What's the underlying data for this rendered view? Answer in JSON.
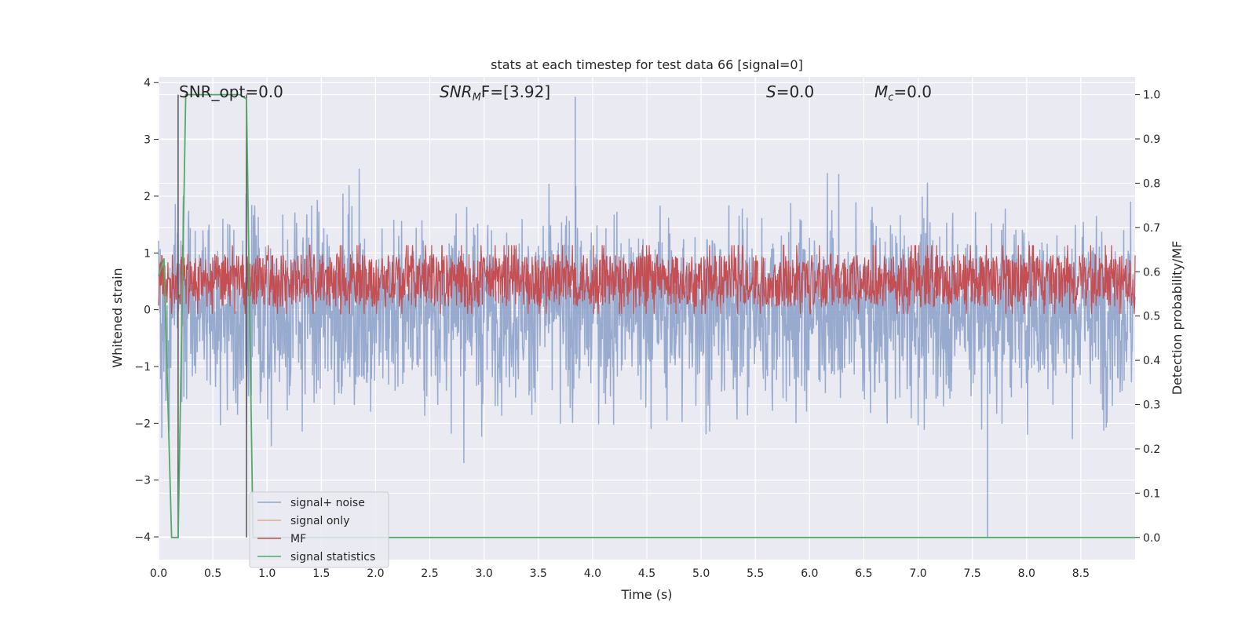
{
  "chart_data": {
    "type": "line",
    "title": "stats at each timestep for test data 66 [signal=0]",
    "xlabel": "Time (s)",
    "ylabel_left": "Whitened strain",
    "ylabel_right": "Detection probability/MF",
    "xlim": [
      0.0,
      9.0
    ],
    "ylim_left": [
      -4.4,
      4.1
    ],
    "ylim_right": [
      -0.05,
      1.04
    ],
    "x_ticks": [
      "0.0",
      "0.5",
      "1.0",
      "1.5",
      "2.0",
      "2.5",
      "3.0",
      "3.5",
      "4.0",
      "4.5",
      "5.0",
      "5.5",
      "6.0",
      "6.5",
      "7.0",
      "7.5",
      "8.0",
      "8.5"
    ],
    "y_left_ticks": [
      "4",
      "3",
      "2",
      "1",
      "0",
      "−1",
      "−2",
      "−3",
      "−4"
    ],
    "y_right_ticks": [
      "1.0",
      "0.9",
      "0.8",
      "0.7",
      "0.6",
      "0.5",
      "0.4",
      "0.3",
      "0.2",
      "0.1",
      "0.0"
    ],
    "grid": true,
    "legend_position": "lower-left",
    "annotations": {
      "snr_opt": "SNR_opt=0.0",
      "snr_mf_prefix": "SNR",
      "snr_mf_sub": "M",
      "snr_mf_suffix": "F=[3.92]",
      "s_label": "S",
      "s_value": "=0.0",
      "mc_label": "M",
      "mc_sub": "c",
      "mc_value": "=0.0"
    },
    "vertical_markers_x": [
      0.18,
      0.81
    ],
    "series": [
      {
        "name": "signal+ noise",
        "axis": "left",
        "color": "#8fa4cb",
        "noise_range_left": [
          -3.1,
          3.75
        ],
        "notable_spikes": [
          {
            "x": 3.84,
            "y": 3.75
          },
          {
            "x": 7.64,
            "y": -4.0
          }
        ]
      },
      {
        "name": "signal only",
        "axis": "left",
        "color": "#e8a88a",
        "values": []
      },
      {
        "name": "MF",
        "axis": "right",
        "color": "#c44e52",
        "band_right": [
          0.52,
          0.64
        ]
      },
      {
        "name": "signal statistics",
        "axis": "right",
        "color": "#55a868",
        "x": [
          0.0,
          0.05,
          0.12,
          0.18,
          0.25,
          0.3,
          0.5,
          0.75,
          0.81,
          0.87,
          9.0
        ],
        "y": [
          0.59,
          0.63,
          0.0,
          0.0,
          1.0,
          1.0,
          1.0,
          1.0,
          0.99,
          0.0,
          0.0
        ]
      }
    ]
  }
}
